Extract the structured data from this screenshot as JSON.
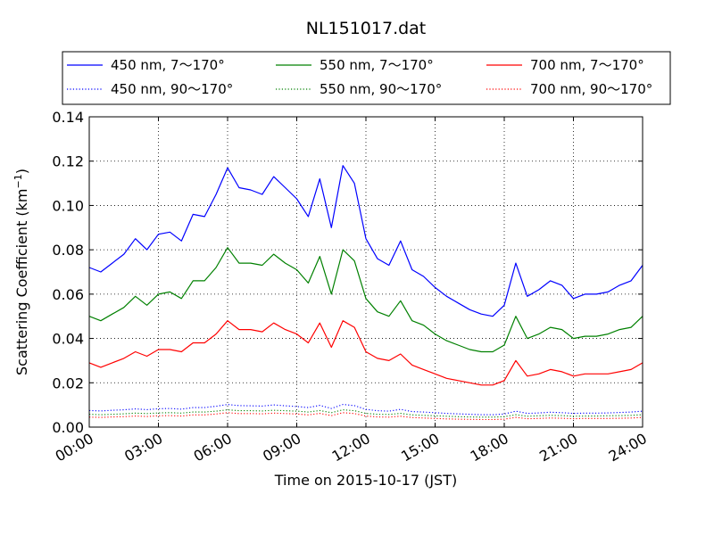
{
  "chart_data": {
    "type": "line",
    "title": "NL151017.dat",
    "xlabel": "Time on 2015-10-17 (JST)",
    "ylabel_main": "Scattering Coefficient (km",
    "ylabel_sup": "−1",
    "ylabel_close": ")",
    "xlim": [
      "00:00",
      "24:00"
    ],
    "ylim": [
      0,
      0.14
    ],
    "x_ticks": [
      "00:00",
      "03:00",
      "06:00",
      "09:00",
      "12:00",
      "15:00",
      "18:00",
      "21:00",
      "24:00"
    ],
    "y_ticks": [
      "0.00",
      "0.02",
      "0.04",
      "0.06",
      "0.08",
      "0.10",
      "0.12",
      "0.14"
    ],
    "grid": true,
    "legend_position": "top, outside plot",
    "x": [
      "00:00",
      "00:30",
      "01:00",
      "01:30",
      "02:00",
      "02:30",
      "03:00",
      "03:30",
      "04:00",
      "04:30",
      "05:00",
      "05:30",
      "06:00",
      "06:30",
      "07:00",
      "07:30",
      "08:00",
      "08:30",
      "09:00",
      "09:30",
      "10:00",
      "10:30",
      "11:00",
      "11:30",
      "12:00",
      "12:30",
      "13:00",
      "13:30",
      "14:00",
      "14:30",
      "15:00",
      "15:30",
      "16:00",
      "16:30",
      "17:00",
      "17:30",
      "18:00",
      "18:30",
      "19:00",
      "19:30",
      "20:00",
      "20:30",
      "21:00",
      "21:30",
      "22:00",
      "22:30",
      "23:00",
      "23:30",
      "24:00"
    ],
    "series": [
      {
        "name": "450 nm, 7～170°",
        "color": "#0000ff",
        "style": "solid",
        "values": [
          0.072,
          0.07,
          0.074,
          0.078,
          0.085,
          0.08,
          0.087,
          0.088,
          0.084,
          0.096,
          0.095,
          0.105,
          0.117,
          0.108,
          0.107,
          0.105,
          0.113,
          0.108,
          0.103,
          0.095,
          0.112,
          0.09,
          0.118,
          0.11,
          0.085,
          0.076,
          0.073,
          0.084,
          0.071,
          0.068,
          0.063,
          0.059,
          0.056,
          0.053,
          0.051,
          0.05,
          0.055,
          0.074,
          0.059,
          0.062,
          0.066,
          0.064,
          0.058,
          0.06,
          0.06,
          0.061,
          0.064,
          0.066,
          0.073
        ]
      },
      {
        "name": "450 nm, 90～170°",
        "color": "#0000ff",
        "style": "dotted",
        "values": [
          0.0075,
          0.0073,
          0.0076,
          0.0078,
          0.0082,
          0.0079,
          0.0083,
          0.0084,
          0.0081,
          0.0088,
          0.0088,
          0.0094,
          0.0102,
          0.0097,
          0.0096,
          0.0095,
          0.01,
          0.0096,
          0.0093,
          0.0088,
          0.0098,
          0.0084,
          0.0102,
          0.0097,
          0.008,
          0.0074,
          0.0072,
          0.008,
          0.007,
          0.0068,
          0.0065,
          0.0062,
          0.006,
          0.0058,
          0.0056,
          0.0056,
          0.0059,
          0.0072,
          0.0062,
          0.0064,
          0.0067,
          0.0065,
          0.0062,
          0.0063,
          0.0063,
          0.0064,
          0.0066,
          0.0068,
          0.0072
        ]
      },
      {
        "name": "550 nm, 7～170°",
        "color": "#008000",
        "style": "solid",
        "values": [
          0.05,
          0.048,
          0.051,
          0.054,
          0.059,
          0.055,
          0.06,
          0.061,
          0.058,
          0.066,
          0.066,
          0.072,
          0.081,
          0.074,
          0.074,
          0.073,
          0.078,
          0.074,
          0.071,
          0.065,
          0.077,
          0.06,
          0.08,
          0.075,
          0.058,
          0.052,
          0.05,
          0.057,
          0.048,
          0.046,
          0.042,
          0.039,
          0.037,
          0.035,
          0.034,
          0.034,
          0.037,
          0.05,
          0.04,
          0.042,
          0.045,
          0.044,
          0.04,
          0.041,
          0.041,
          0.042,
          0.044,
          0.045,
          0.05
        ]
      },
      {
        "name": "550 nm, 90～170°",
        "color": "#008000",
        "style": "dotted",
        "values": [
          0.0058,
          0.0056,
          0.0058,
          0.006,
          0.0063,
          0.0061,
          0.0064,
          0.0065,
          0.0063,
          0.0068,
          0.0068,
          0.0072,
          0.0078,
          0.0074,
          0.0074,
          0.0073,
          0.0076,
          0.0074,
          0.0072,
          0.0068,
          0.0075,
          0.0065,
          0.0078,
          0.0074,
          0.0062,
          0.0058,
          0.0057,
          0.0062,
          0.0055,
          0.0053,
          0.0051,
          0.0049,
          0.0047,
          0.0046,
          0.0045,
          0.0045,
          0.0047,
          0.0056,
          0.0049,
          0.0051,
          0.0053,
          0.0052,
          0.0049,
          0.005,
          0.005,
          0.0051,
          0.0052,
          0.0053,
          0.0056
        ]
      },
      {
        "name": "700 nm, 7～170°",
        "color": "#ff0000",
        "style": "solid",
        "values": [
          0.029,
          0.027,
          0.029,
          0.031,
          0.034,
          0.032,
          0.035,
          0.035,
          0.034,
          0.038,
          0.038,
          0.042,
          0.048,
          0.044,
          0.044,
          0.043,
          0.047,
          0.044,
          0.042,
          0.038,
          0.047,
          0.036,
          0.048,
          0.045,
          0.034,
          0.031,
          0.03,
          0.033,
          0.028,
          0.026,
          0.024,
          0.022,
          0.021,
          0.02,
          0.019,
          0.019,
          0.021,
          0.03,
          0.023,
          0.024,
          0.026,
          0.025,
          0.023,
          0.024,
          0.024,
          0.024,
          0.025,
          0.026,
          0.029
        ]
      },
      {
        "name": "700 nm, 90～170°",
        "color": "#ff0000",
        "style": "dotted",
        "values": [
          0.0045,
          0.0044,
          0.0046,
          0.0047,
          0.005,
          0.0048,
          0.0051,
          0.0052,
          0.005,
          0.0055,
          0.0055,
          0.0059,
          0.0065,
          0.0061,
          0.0061,
          0.006,
          0.0063,
          0.0061,
          0.0059,
          0.0055,
          0.0062,
          0.0052,
          0.0065,
          0.0061,
          0.005,
          0.0046,
          0.0045,
          0.0049,
          0.0043,
          0.0041,
          0.0039,
          0.0037,
          0.0036,
          0.0035,
          0.0034,
          0.0034,
          0.0036,
          0.0044,
          0.0038,
          0.0039,
          0.0041,
          0.004,
          0.0038,
          0.0039,
          0.0039,
          0.0039,
          0.004,
          0.0041,
          0.0044
        ]
      }
    ]
  }
}
